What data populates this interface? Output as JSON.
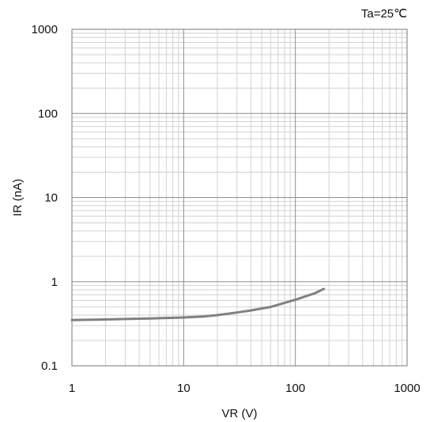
{
  "chart_data": {
    "type": "line",
    "title": "",
    "annotation": "Ta=25℃",
    "xlabel": "VR (V)",
    "ylabel": "IR (nA)",
    "x_scale": "log",
    "y_scale": "log",
    "xlim": [
      1,
      1000
    ],
    "ylim": [
      0.1,
      1000
    ],
    "x_tick_labels": [
      "1",
      "10",
      "100",
      "1000"
    ],
    "y_tick_labels": [
      "0.1",
      "1",
      "10",
      "100",
      "1000"
    ],
    "x_ticks": [
      1,
      10,
      100,
      1000
    ],
    "y_ticks": [
      0.1,
      1,
      10,
      100,
      1000
    ],
    "grid": true,
    "legend": "none",
    "series": [
      {
        "color": "#808080",
        "x": [
          1,
          2,
          3,
          5,
          7,
          10,
          15,
          20,
          30,
          40,
          50,
          60,
          80,
          100,
          150,
          180
        ],
        "y": [
          0.35,
          0.355,
          0.36,
          0.365,
          0.37,
          0.375,
          0.385,
          0.4,
          0.43,
          0.455,
          0.48,
          0.5,
          0.56,
          0.61,
          0.73,
          0.82
        ]
      }
    ]
  }
}
